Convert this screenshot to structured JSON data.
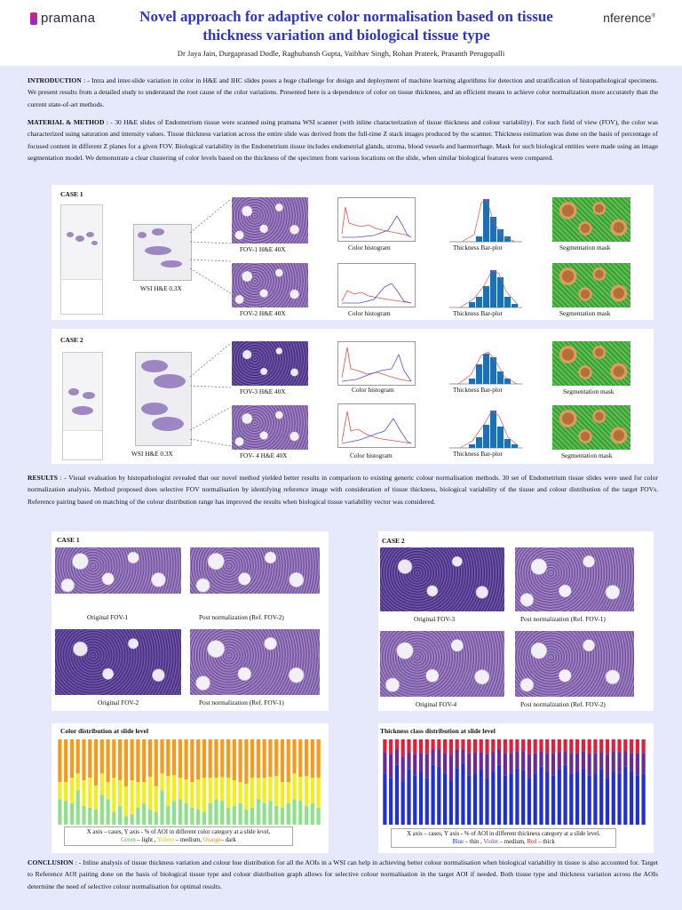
{
  "header": {
    "logo_left": "pramana",
    "logo_right": "nference",
    "title_line1": "Novel approach for adaptive color normalisation based on tissue",
    "title_line2": "thickness variation and biological tissue type",
    "authors": "Dr Jaya Jain, Durgaprasad Dodle, Raghubansh Gupta, Vaibhav Singh, Rohan Prateek, Prasanth Perugupalli"
  },
  "introduction": {
    "heading": "INTRODUCTION",
    "text": ": - Intra and inter-slide variation in color in H&E and IHC slides poses a huge challenge for design and deployment of machine learning algorithms for detection and stratification of histopathological specimens. We present results from a detailed study to understand the root cause of the color variations. Presented here is a dependence of color on tissue thickness, and an efficient means to achieve color normalization more accurately than the current state-of-art methods."
  },
  "methods": {
    "heading": "MATERIAL & METHOD",
    "text": ": - 30 H&E slides of Endometrium tissue were scanned using pramana WSI scanner (with inline characterization of tissue thickness and colour variability). For each field of view (FOV), the color was characterized using saturation and intensity values. Tissue thickness variation across the entire slide was derived from the full-time Z stack images produced by the scanner. Thickness estimation was done on the basis of percentage of focused content in different Z planes for a given FOV. Biological variability in the Endometrium tissue includes endometrial glands, stroma, blood vessels and haemorrhage. Mask for such biological entities were made using an image segmentation model. We demonstrate a clear clustering of color levels based on the thickness of the specimen from various locations on the slide, when similar biological features were compared."
  },
  "case1": {
    "label": "CASE 1",
    "wsi": "WSI H&E 0.3X",
    "fov_a": "FOV-1 H&E 40X",
    "fov_b": "FOV-2 H&E 40X",
    "hist": "Color histogram",
    "bar": "Thickness Bar-plot",
    "seg": "Segmentation mask"
  },
  "case2": {
    "label": "CASE 2",
    "wsi": "WSI H&E 0.3X",
    "fov_a": "FOV-3 H&E 40X",
    "fov_b": "FOV- 4 H&E 40X",
    "hist": "Color histogram",
    "bar": "Thickness Bar-plot",
    "seg": "Segmentation mask"
  },
  "results": {
    "heading": "RESULTS",
    "text": ": - Visual evaluation by histopathologist revealed that our novel method yielded better results in comparison to existing generic colour normalisation methods. 30 set of Endometrium tissue slides were used for color normalization analysis. Method proposed does selective FOV normalisation by identifying reference image with consideration of tissue thickness, biological variability of the tissue and colour distribution of the target FOVs. Reference pairing based on matching of the colour distribution range has improved the results when biological tissue variability vector was considered."
  },
  "results_case1": {
    "label": "CASE 1",
    "a": "Original FOV-1",
    "b": "Post normalization (Ref. FOV-2)",
    "c": "Original FOV-2",
    "d": "Post normalization (Ref. FOV-1)"
  },
  "results_case2": {
    "label": "CASE 2",
    "a": "Original FOV-3",
    "b": "Post normalization (Ref. FOV-1)",
    "c": "Original FOV-4",
    "d": "Post normalization (Ref. FOV-2)"
  },
  "color_chart": {
    "title": "Color distribution at slide level",
    "legend_line1": "X axis – cases, Y axis - % of AOI in different color category at a slide level,",
    "legend_green": "Green",
    "legend_light": " – light , ",
    "legend_yellow": "Yellow",
    "legend_medium": " – medium, ",
    "legend_orange": "Orange",
    "legend_dark": "– dark",
    "colors": {
      "light": "#8ee08a",
      "medium": "#f2ee1a",
      "dark": "#f59a1a"
    }
  },
  "thickness_chart": {
    "title": "Thickness class distribution at slide level",
    "legend_line1": "X axis – cases, Y axis - % of AOI in different thickness category at a slide level,",
    "legend_blue": "Blue",
    "legend_thin": " – thin , ",
    "legend_violet": "Violet",
    "legend_medium": " – medium, ",
    "legend_red": "Red",
    "legend_thick": " – thick",
    "colors": {
      "thin": "#1f2fd8",
      "medium": "#6a2a9a",
      "thick": "#e0203a"
    }
  },
  "conclusion": {
    "heading": "CONCLUSION",
    "text": ": - Inline analysis of tissue thickness variation and colour hue distribution for all the AOIs in a WSI can help in achieving better colour normalisation when biological variability in tissue is also accounted for. Target to Reference AOI pairing done on the basis of biological tissue type and colour distribution graph allows for selective colour normalisation in the target AOI if needed. Both tissue type and thickness variation across the AOIs determine the need of selective colour normalisation for optimal results."
  },
  "chart_data": [
    {
      "type": "bar",
      "title": "Color distribution at slide level",
      "stacked": true,
      "series": [
        {
          "name": "light",
          "values": [
            30,
            28,
            25,
            40,
            22,
            20,
            18,
            35,
            30,
            15,
            22,
            10,
            12,
            20,
            25,
            18,
            15,
            40,
            22,
            28,
            30,
            25,
            20,
            18,
            15,
            25,
            30,
            28,
            20,
            22,
            25,
            18,
            20,
            30,
            25,
            28,
            22,
            20,
            25,
            30,
            28,
            22,
            25,
            20
          ]
        },
        {
          "name": "medium",
          "values": [
            20,
            22,
            30,
            20,
            30,
            35,
            28,
            25,
            20,
            40,
            30,
            35,
            40,
            30,
            25,
            38,
            30,
            20,
            35,
            30,
            25,
            28,
            30,
            35,
            40,
            30,
            25,
            28,
            35,
            30,
            25,
            30,
            35,
            25,
            30,
            28,
            35,
            30,
            25,
            30,
            28,
            35,
            30,
            35
          ]
        },
        {
          "name": "dark",
          "values": [
            50,
            50,
            45,
            40,
            48,
            45,
            54,
            40,
            50,
            45,
            48,
            55,
            48,
            50,
            50,
            44,
            55,
            40,
            43,
            42,
            45,
            47,
            50,
            47,
            45,
            45,
            45,
            44,
            45,
            48,
            50,
            52,
            45,
            45,
            45,
            44,
            43,
            50,
            50,
            40,
            44,
            43,
            45,
            45
          ]
        }
      ]
    },
    {
      "type": "bar",
      "title": "Thickness class distribution at slide level",
      "stacked": true,
      "series": [
        {
          "name": "thin",
          "values": [
            60,
            55,
            70,
            50,
            65,
            58,
            62,
            55,
            70,
            68,
            60,
            52,
            66,
            72,
            58,
            60,
            65,
            55,
            62,
            70,
            58,
            60,
            66,
            64,
            55,
            60,
            68,
            62,
            58,
            65,
            70,
            60,
            62,
            66,
            58,
            60,
            65,
            55,
            62,
            60,
            68,
            62,
            58,
            60
          ]
        },
        {
          "name": "medium",
          "values": [
            25,
            28,
            18,
            30,
            20,
            25,
            22,
            28,
            18,
            20,
            24,
            30,
            22,
            16,
            26,
            25,
            20,
            28,
            24,
            18,
            26,
            24,
            20,
            22,
            28,
            24,
            18,
            22,
            26,
            20,
            16,
            24,
            22,
            20,
            26,
            24,
            20,
            28,
            24,
            25,
            18,
            22,
            26,
            24
          ]
        },
        {
          "name": "thick",
          "values": [
            15,
            17,
            12,
            20,
            15,
            17,
            16,
            17,
            12,
            12,
            16,
            18,
            12,
            12,
            16,
            15,
            15,
            17,
            14,
            12,
            16,
            16,
            14,
            14,
            17,
            16,
            14,
            16,
            16,
            15,
            14,
            16,
            16,
            14,
            16,
            16,
            15,
            17,
            14,
            15,
            14,
            16,
            16,
            16
          ]
        }
      ]
    }
  ]
}
